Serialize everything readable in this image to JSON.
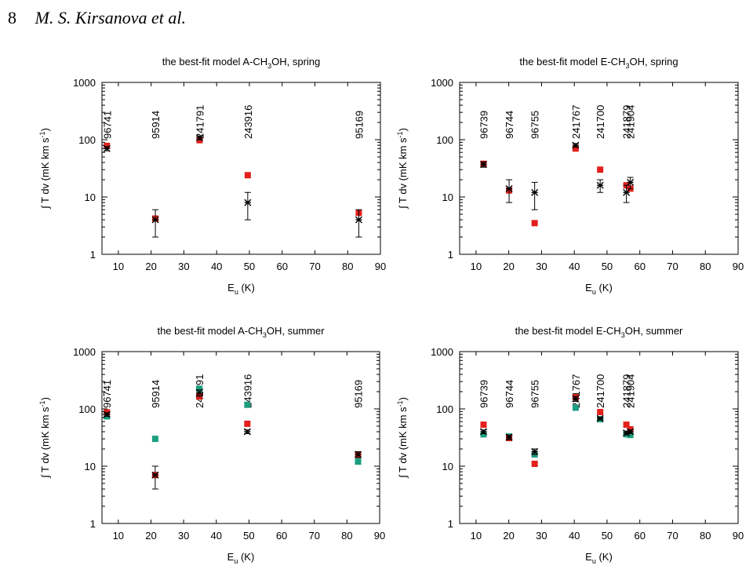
{
  "header": {
    "page_number": "8",
    "authors": "M. S. Kirsanova et al."
  },
  "colors": {
    "model_red": "#e3201b",
    "model_green": "#1a9e7f",
    "observed": "#000000"
  },
  "chart_data": [
    {
      "type": "scatter",
      "title_pre": "the best-fit model A-CH",
      "title_sub": "3",
      "title_post": "OH, spring",
      "xlabel_main": "E",
      "xlabel_sub": "u",
      "xlabel_tail": " (K)",
      "ylabel_main": "∫ T dv (mK km s",
      "ylabel_sup": "-1",
      "ylabel_tail": ")",
      "xlim": [
        5,
        90
      ],
      "ylim": [
        1,
        1000
      ],
      "yscale": "log",
      "xticks": [
        10,
        20,
        30,
        40,
        50,
        60,
        70,
        80,
        90
      ],
      "yticks": [
        1,
        10,
        100,
        1000
      ],
      "line_labels": [
        {
          "x": 6.5,
          "text": "96741"
        },
        {
          "x": 21.3,
          "text": "95914"
        },
        {
          "x": 34.8,
          "text": "241791"
        },
        {
          "x": 49.5,
          "text": "243916"
        },
        {
          "x": 83.4,
          "text": "95169"
        }
      ],
      "observed": [
        {
          "x": 6.5,
          "y": 70,
          "err": [
            64,
            76
          ]
        },
        {
          "x": 21.3,
          "y": 4,
          "err": [
            2,
            6
          ]
        },
        {
          "x": 34.8,
          "y": 108,
          "err": [
            100,
            116
          ]
        },
        {
          "x": 49.5,
          "y": 8,
          "err": [
            4,
            12
          ]
        },
        {
          "x": 83.4,
          "y": 4,
          "err": [
            2,
            6
          ]
        }
      ],
      "model_red": [
        {
          "x": 6.5,
          "y": 78
        },
        {
          "x": 21.3,
          "y": 4.2
        },
        {
          "x": 34.8,
          "y": 98
        },
        {
          "x": 49.5,
          "y": 24
        },
        {
          "x": 83.4,
          "y": 5.3
        }
      ],
      "model_green": []
    },
    {
      "type": "scatter",
      "title_pre": "the best-fit model E-CH",
      "title_sub": "3",
      "title_post": "OH, spring",
      "xlabel_main": "E",
      "xlabel_sub": "u",
      "xlabel_tail": " (K)",
      "ylabel_main": "∫ T dv (mK km s",
      "ylabel_sup": "-1",
      "ylabel_tail": ")",
      "xlim": [
        5,
        90
      ],
      "ylim": [
        1,
        1000
      ],
      "yscale": "log",
      "xticks": [
        10,
        20,
        30,
        40,
        50,
        60,
        70,
        80,
        90
      ],
      "yticks": [
        1,
        10,
        100,
        1000
      ],
      "line_labels": [
        {
          "x": 12.3,
          "text": "96739"
        },
        {
          "x": 20.1,
          "text": "96744"
        },
        {
          "x": 27.9,
          "text": "96755"
        },
        {
          "x": 40.4,
          "text": "241767"
        },
        {
          "x": 47.9,
          "text": "241700"
        },
        {
          "x": 55.9,
          "text": "241879"
        },
        {
          "x": 57.1,
          "text": "241904"
        }
      ],
      "observed": [
        {
          "x": 12.3,
          "y": 37,
          "err": [
            33,
            41
          ]
        },
        {
          "x": 20.1,
          "y": 14,
          "err": [
            8,
            20
          ]
        },
        {
          "x": 27.9,
          "y": 12,
          "err": [
            6,
            18
          ]
        },
        {
          "x": 40.4,
          "y": 80,
          "err": [
            74,
            86
          ]
        },
        {
          "x": 47.9,
          "y": 16,
          "err": [
            12,
            20
          ]
        },
        {
          "x": 55.9,
          "y": 12,
          "err": [
            8,
            16
          ]
        },
        {
          "x": 57.1,
          "y": 18,
          "err": [
            14,
            22
          ]
        }
      ],
      "model_red": [
        {
          "x": 12.3,
          "y": 38
        },
        {
          "x": 20.1,
          "y": 13
        },
        {
          "x": 27.9,
          "y": 3.5
        },
        {
          "x": 40.4,
          "y": 70
        },
        {
          "x": 47.9,
          "y": 30
        },
        {
          "x": 55.9,
          "y": 16
        },
        {
          "x": 57.1,
          "y": 14
        }
      ],
      "model_green": []
    },
    {
      "type": "scatter",
      "title_pre": "the best-fit model A-CH",
      "title_sub": "3",
      "title_post": "OH, summer",
      "xlabel_main": "E",
      "xlabel_sub": "u",
      "xlabel_tail": " (K)",
      "ylabel_main": "∫ T dv (mK km s",
      "ylabel_sup": "-1",
      "ylabel_tail": ")",
      "xlim": [
        5,
        90
      ],
      "ylim": [
        1,
        1000
      ],
      "yscale": "log",
      "xticks": [
        10,
        20,
        30,
        40,
        50,
        60,
        70,
        80,
        90
      ],
      "yticks": [
        1,
        10,
        100,
        1000
      ],
      "line_labels": [
        {
          "x": 6.5,
          "text": "96741"
        },
        {
          "x": 21.3,
          "text": "95914"
        },
        {
          "x": 34.8,
          "text": "241791"
        },
        {
          "x": 49.5,
          "text": "243916"
        },
        {
          "x": 83.4,
          "text": "95169"
        }
      ],
      "observed": [
        {
          "x": 6.5,
          "y": 80,
          "err": [
            74,
            86
          ]
        },
        {
          "x": 21.3,
          "y": 7,
          "err": [
            4,
            10
          ]
        },
        {
          "x": 34.8,
          "y": 190,
          "err": [
            165,
            215
          ]
        },
        {
          "x": 49.5,
          "y": 40,
          "err": [
            37,
            43
          ]
        },
        {
          "x": 83.4,
          "y": 16,
          "err": [
            14,
            18
          ]
        }
      ],
      "model_red": [
        {
          "x": 6.5,
          "y": 87
        },
        {
          "x": 21.3,
          "y": 7
        },
        {
          "x": 34.8,
          "y": 165
        },
        {
          "x": 49.5,
          "y": 55
        },
        {
          "x": 83.4,
          "y": 16
        }
      ],
      "model_green": [
        {
          "x": 6.5,
          "y": 74
        },
        {
          "x": 21.3,
          "y": 30
        },
        {
          "x": 34.8,
          "y": 225
        },
        {
          "x": 49.5,
          "y": 118
        },
        {
          "x": 83.4,
          "y": 12
        }
      ]
    },
    {
      "type": "scatter",
      "title_pre": "the best-fit model E-CH",
      "title_sub": "3",
      "title_post": "OH, summer",
      "xlabel_main": "E",
      "xlabel_sub": "u",
      "xlabel_tail": " (K)",
      "ylabel_main": "∫ T dv (mK km s",
      "ylabel_sup": "-1",
      "ylabel_tail": ")",
      "xlim": [
        5,
        90
      ],
      "ylim": [
        1,
        1000
      ],
      "yscale": "log",
      "xticks": [
        10,
        20,
        30,
        40,
        50,
        60,
        70,
        80,
        90
      ],
      "yticks": [
        1,
        10,
        100,
        1000
      ],
      "line_labels": [
        {
          "x": 12.3,
          "text": "96739"
        },
        {
          "x": 20.1,
          "text": "96744"
        },
        {
          "x": 27.9,
          "text": "96755"
        },
        {
          "x": 40.4,
          "text": "241767"
        },
        {
          "x": 47.9,
          "text": "241700"
        },
        {
          "x": 55.9,
          "text": "241879"
        },
        {
          "x": 57.1,
          "text": "241904"
        }
      ],
      "observed": [
        {
          "x": 12.3,
          "y": 40,
          "err": [
            37,
            43
          ]
        },
        {
          "x": 20.1,
          "y": 32,
          "err": [
            29,
            35
          ]
        },
        {
          "x": 27.9,
          "y": 18,
          "err": [
            16,
            20
          ]
        },
        {
          "x": 40.4,
          "y": 150,
          "err": [
            135,
            165
          ]
        },
        {
          "x": 47.9,
          "y": 68,
          "err": [
            64,
            72
          ]
        },
        {
          "x": 55.9,
          "y": 38,
          "err": [
            35,
            41
          ]
        },
        {
          "x": 57.1,
          "y": 40,
          "err": [
            37,
            43
          ]
        }
      ],
      "model_red": [
        {
          "x": 12.3,
          "y": 53
        },
        {
          "x": 20.1,
          "y": 31
        },
        {
          "x": 27.9,
          "y": 11
        },
        {
          "x": 40.4,
          "y": 160
        },
        {
          "x": 47.9,
          "y": 88
        },
        {
          "x": 55.9,
          "y": 53
        },
        {
          "x": 57.1,
          "y": 44
        }
      ],
      "model_green": [
        {
          "x": 12.3,
          "y": 36
        },
        {
          "x": 20.1,
          "y": 33
        },
        {
          "x": 27.9,
          "y": 16
        },
        {
          "x": 40.4,
          "y": 105
        },
        {
          "x": 47.9,
          "y": 66
        },
        {
          "x": 55.9,
          "y": 36
        },
        {
          "x": 57.1,
          "y": 35
        }
      ]
    }
  ]
}
